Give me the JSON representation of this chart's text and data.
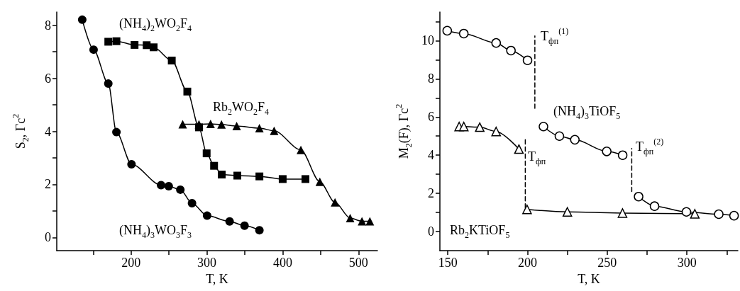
{
  "chart_data": [
    {
      "type": "line",
      "xlabel": "T, K",
      "ylabel": "S$_{2}$, Гс$^{2}$",
      "xlim": [
        102,
        525
      ],
      "xticks": [
        {
          "value": 150,
          "label": null
        },
        200,
        {
          "value": 250,
          "label": null
        },
        300,
        {
          "value": 350,
          "label": null
        },
        400,
        {
          "value": 450,
          "label": null
        },
        500
      ],
      "ylim": [
        -0.5,
        8.5
      ],
      "yticks": [
        0,
        {
          "value": 1,
          "label": null
        },
        2,
        {
          "value": 3,
          "label": null
        },
        4,
        {
          "value": 5,
          "label": null
        },
        6,
        {
          "value": 7,
          "label": null
        },
        8
      ],
      "series": [
        {
          "name": "(NH$_{4}$)$_{3}$WO$_{3}$F$_{3}$",
          "color": "#000000",
          "marker": "circle",
          "x": [
            135.6,
            150.6,
            170,
            180.7,
            200.6,
            239.6,
            249.7,
            265,
            280.4,
            300.3,
            330,
            349.7,
            369.3
          ],
          "values": [
            8.21,
            7.08,
            5.8,
            3.97,
            2.76,
            1.97,
            1.93,
            1.8,
            1.29,
            0.82,
            0.6,
            0.44,
            0.27
          ]
        },
        {
          "name": "(NH$_{4}$)$_{2}$WO$_{2}$F$_{4}$",
          "color": "#000000",
          "marker": "square",
          "x": [
            170,
            180.7,
            204.6,
            220.6,
            229.8,
            253.7,
            274.2,
            289.6,
            299.7,
            309.5,
            319.6,
            340.2,
            369.3,
            400,
            430
          ],
          "values": [
            7.38,
            7.4,
            7.26,
            7.25,
            7.17,
            6.67,
            5.5,
            4.15,
            3.17,
            2.7,
            2.37,
            2.33,
            2.3,
            2.2,
            2.2
          ]
        },
        {
          "name": "Rb$_{2}$WO$_{2}$F$_{4}$",
          "color": "#000000",
          "marker": "triangle",
          "x": [
            268.1,
            289.6,
            304.9,
            319.3,
            339.3,
            369.3,
            388.7,
            424,
            449,
            469,
            489,
            504.6,
            515
          ],
          "values": [
            4.27,
            4.27,
            4.28,
            4.26,
            4.2,
            4.12,
            4.02,
            3.3,
            2.1,
            1.32,
            0.73,
            0.61,
            0.61
          ]
        }
      ]
    },
    {
      "type": "line",
      "xlabel": "T, K",
      "ylabel": "M$_{2}$(F), Гс$^{2}$",
      "xlim": [
        145,
        332
      ],
      "xticks": [
        150,
        {
          "value": 175,
          "label": null
        },
        200,
        {
          "value": 225,
          "label": null
        },
        250,
        {
          "value": 275,
          "label": null
        },
        300,
        {
          "value": 325,
          "label": null
        }
      ],
      "ylim": [
        -1,
        11.5
      ],
      "yticks": [
        0,
        {
          "value": 1,
          "label": null
        },
        2,
        {
          "value": 3,
          "label": null
        },
        4,
        {
          "value": 5,
          "label": null
        },
        6,
        {
          "value": 7,
          "label": null
        },
        8,
        {
          "value": 9,
          "label": null
        },
        10,
        {
          "value": 11,
          "label": null
        }
      ],
      "series": [
        {
          "name": "(NH$_{4}$)$_{3}$TiOF$_{5}$",
          "color": "#000000",
          "marker": "circle",
          "x": [
            149.6,
            160,
            180.3,
            189.6,
            200,
            205,
            210,
            220,
            229.7,
            249.7,
            259.7,
            265,
            269.7,
            279.7,
            299.7,
            320,
            329.6
          ],
          "values": [
            10.52,
            10.37,
            9.88,
            9.48,
            8.97,
            null,
            5.5,
            5.0,
            4.81,
            4.2,
            4.0,
            null,
            1.83,
            1.33,
            1.03,
            0.91,
            0.83
          ]
        },
        {
          "name": "Rb$_{2}$KTiOF$_{5}$",
          "color": "#000000",
          "marker": "triangle",
          "x": [
            157.1,
            160,
            170,
            180.3,
            194.6,
            197,
            199.7,
            225,
            259.6,
            305
          ],
          "values": [
            5.5,
            5.5,
            5.47,
            5.24,
            4.32,
            null,
            1.16,
            1.03,
            0.97,
            0.93
          ]
        },
        {
          "name": "T$_{фп}$$^{(1)}$",
          "color": "#000000",
          "marker": "none",
          "line_style": "dashed",
          "x": [
            204.6,
            204.6
          ],
          "values": [
            6.46,
            10.25
          ]
        },
        {
          "name": "T$_{фп}$",
          "color": "#000000",
          "marker": "none",
          "line_style": "dashed",
          "x": [
            198.6,
            198.6
          ],
          "values": [
            1.24,
            4.9
          ]
        },
        {
          "name": "T$_{фп}$$^{(2)}$",
          "color": "#000000",
          "marker": "none",
          "line_style": "dashed",
          "x": [
            265.4,
            265.4
          ],
          "values": [
            2.1,
            4.35
          ]
        }
      ]
    }
  ]
}
